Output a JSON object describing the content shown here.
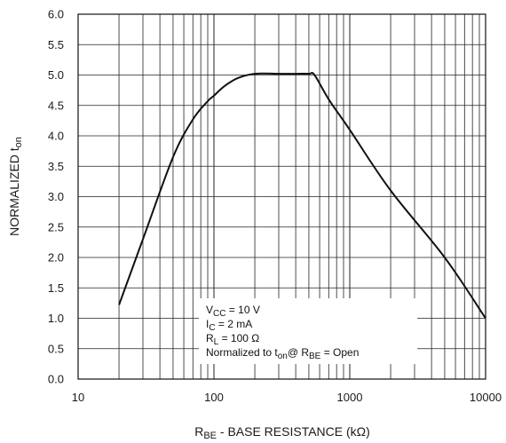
{
  "chart_data": {
    "type": "line",
    "xscale": "log",
    "xlim": [
      10,
      10000
    ],
    "ylim": [
      0,
      6
    ],
    "grid": true,
    "x_ticks": [
      {
        "value": 10,
        "label": "10"
      },
      {
        "value": 100,
        "label": "100"
      },
      {
        "value": 1000,
        "label": "1000"
      },
      {
        "value": 10000,
        "label": "10000"
      }
    ],
    "y_ticks": [
      "0.0",
      "0.5",
      "1.0",
      "1.5",
      "2.0",
      "2.5",
      "3.0",
      "3.5",
      "4.0",
      "4.5",
      "5.0",
      "5.5",
      "6.0"
    ],
    "xlabel": {
      "main": "R",
      "sub": "BE",
      "rest": " - BASE RESISTANCE (kΩ)"
    },
    "ylabel": {
      "main": "NORMALIZED t",
      "sub": "on"
    },
    "series": [
      {
        "x": [
          20,
          30,
          50,
          70,
          90,
          100,
          120,
          150,
          200,
          300,
          400,
          500,
          550,
          700,
          1000,
          2000,
          5000,
          10000
        ],
        "y": [
          1.22,
          2.3,
          3.65,
          4.27,
          4.57,
          4.66,
          4.82,
          4.95,
          5.02,
          5.02,
          5.02,
          5.02,
          5.0,
          4.6,
          4.1,
          3.1,
          2.0,
          1.0
        ]
      }
    ],
    "annotation": [
      [
        {
          "t": "V"
        },
        {
          "t": "CC",
          "sub": true
        },
        {
          "t": " = 10 V"
        }
      ],
      [
        {
          "t": "I"
        },
        {
          "t": "C",
          "sub": true
        },
        {
          "t": " = 2 mA"
        }
      ],
      [
        {
          "t": "R"
        },
        {
          "t": "L",
          "sub": true
        },
        {
          "t": " = 100 Ω"
        }
      ],
      [
        {
          "t": "Normalized to t"
        },
        {
          "t": "on",
          "sub": true
        },
        {
          "t": "@ R"
        },
        {
          "t": "BE",
          "sub": true
        },
        {
          "t": " = Open"
        }
      ]
    ]
  }
}
